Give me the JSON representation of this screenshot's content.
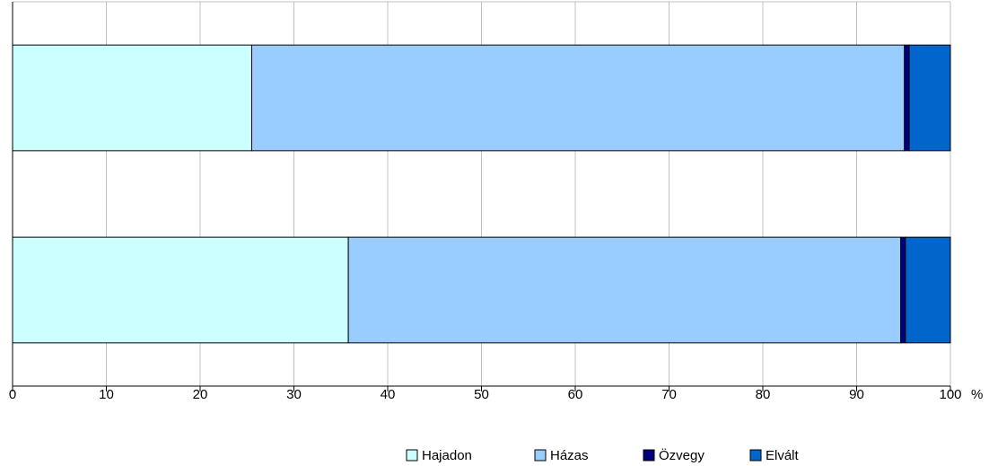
{
  "chart_data": {
    "type": "stacked_barh",
    "categories": [
      null,
      null
    ],
    "series": [
      {
        "name": "Hajadon",
        "color": "#ccffff",
        "values": [
          25.5,
          35.8
        ]
      },
      {
        "name": "Házas",
        "color": "#99ccff",
        "values": [
          69.6,
          58.9
        ]
      },
      {
        "name": "Özvegy",
        "color": "#000080",
        "values": [
          0.5,
          0.5
        ]
      },
      {
        "name": "Elvált",
        "color": "#0066cc",
        "values": [
          4.4,
          4.8
        ]
      }
    ],
    "xlim": [
      0,
      100
    ],
    "xticks": [
      0,
      10,
      20,
      30,
      40,
      50,
      60,
      70,
      80,
      90,
      100
    ],
    "x_unit": "%",
    "grid": true,
    "legend": "bottom"
  }
}
